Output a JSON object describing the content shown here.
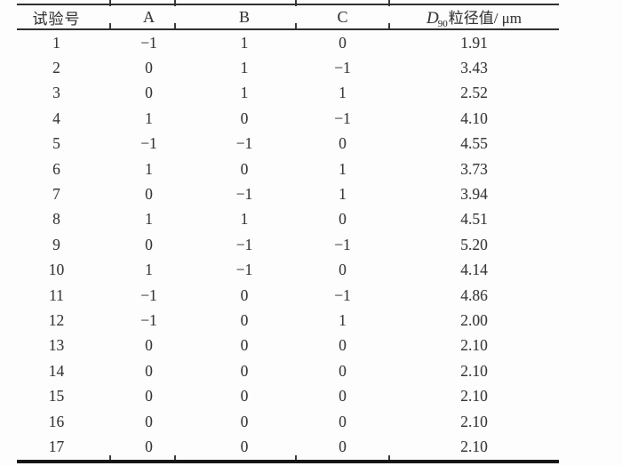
{
  "document": {
    "kind": "scanned experimental design table",
    "ink_color": "#383838",
    "rule_color": "#303030",
    "thick_rule_color": "#161616",
    "background": "#fdfdfd"
  },
  "table": {
    "headers": [
      "试验号",
      "A",
      "B",
      "C"
    ],
    "d_header": {
      "symbol": "D",
      "sub": "90",
      "rest": "粒径值/ μm"
    },
    "rows": [
      [
        "1",
        "−1",
        "1",
        "0",
        "1.91"
      ],
      [
        "2",
        "0",
        "1",
        "−1",
        "3.43"
      ],
      [
        "3",
        "0",
        "1",
        "1",
        "2.52"
      ],
      [
        "4",
        "1",
        "0",
        "−1",
        "4.10"
      ],
      [
        "5",
        "−1",
        "−1",
        "0",
        "4.55"
      ],
      [
        "6",
        "1",
        "0",
        "1",
        "3.73"
      ],
      [
        "7",
        "0",
        "−1",
        "1",
        "3.94"
      ],
      [
        "8",
        "1",
        "1",
        "0",
        "4.51"
      ],
      [
        "9",
        "0",
        "−1",
        "−1",
        "5.20"
      ],
      [
        "10",
        "1",
        "−1",
        "0",
        "4.14"
      ],
      [
        "11",
        "−1",
        "0",
        "−1",
        "4.86"
      ],
      [
        "12",
        "−1",
        "0",
        "1",
        "2.00"
      ],
      [
        "13",
        "0",
        "0",
        "0",
        "2.10"
      ],
      [
        "14",
        "0",
        "0",
        "0",
        "2.10"
      ],
      [
        "15",
        "0",
        "0",
        "0",
        "2.10"
      ],
      [
        "16",
        "0",
        "0",
        "0",
        "2.10"
      ],
      [
        "17",
        "0",
        "0",
        "0",
        "2.10"
      ]
    ]
  }
}
